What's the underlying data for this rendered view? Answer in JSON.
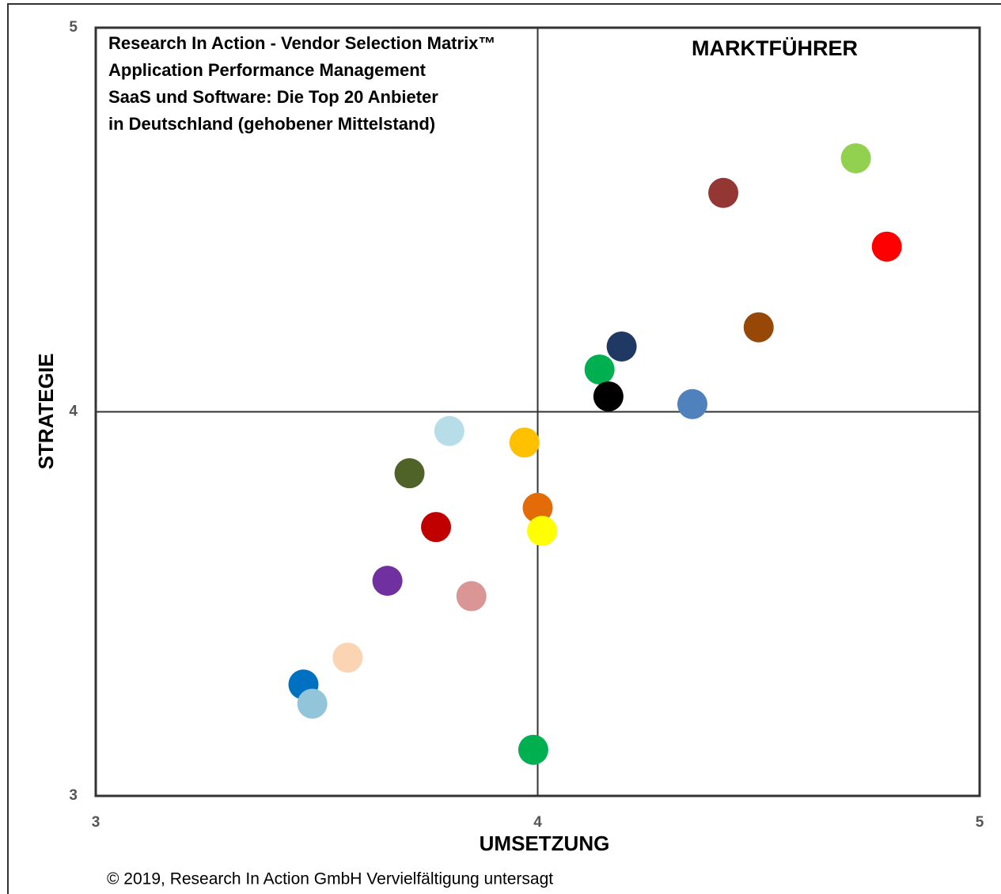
{
  "chart_data": {
    "type": "scatter",
    "title": [
      "Research In Action - Vendor Selection Matrix™",
      "Application Performance Management",
      "SaaS und Software: Die Top 20 Anbieter",
      "in Deutschland (gehobener Mittelstand)"
    ],
    "annotation": "MARKTFÜHRER",
    "x_label": "UMSETZUNG",
    "y_label": "STRATEGIE",
    "footer": "© 2019, Research In Action GmbH Vervielfältigung untersagt",
    "x": [
      4.72,
      4.42,
      4.79,
      4.5,
      4.19,
      4.14,
      4.16,
      4.35,
      3.8,
      3.97,
      3.71,
      4.0,
      4.01,
      3.77,
      3.66,
      3.85,
      3.57,
      3.47,
      3.49,
      3.99
    ],
    "values": [
      4.66,
      4.57,
      4.43,
      4.22,
      4.17,
      4.11,
      4.04,
      4.02,
      3.95,
      3.92,
      3.84,
      3.75,
      3.69,
      3.7,
      3.56,
      3.52,
      3.36,
      3.29,
      3.24,
      3.12
    ],
    "colors": [
      "#92d050",
      "#943634",
      "#ff0000",
      "#974706",
      "#1f3864",
      "#00b050",
      "#000000",
      "#4f81bd",
      "#b7dde8",
      "#ffc000",
      "#4f6228",
      "#e36c09",
      "#ffff00",
      "#c00000",
      "#7030a0",
      "#d99694",
      "#fbd4b4",
      "#0070c0",
      "#92c5da",
      "#00b050"
    ],
    "xlim": [
      3,
      5
    ],
    "ylim": [
      3,
      5
    ],
    "xticks": [
      3,
      4,
      5
    ],
    "yticks": [
      3,
      4,
      5
    ],
    "grid": true
  }
}
